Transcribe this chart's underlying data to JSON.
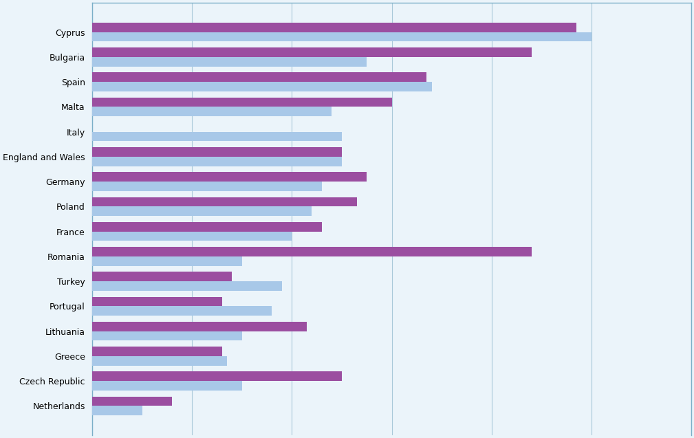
{
  "countries": [
    "Cyprus",
    "Bulgaria",
    "Spain",
    "Malta",
    "Italy",
    "England and Wales",
    "Germany",
    "Poland",
    "France",
    "Romania",
    "Turkey",
    "Portugal",
    "Lithuania",
    "Greece",
    "Czech Republic",
    "Netherlands"
  ],
  "values_blue": [
    100,
    55,
    68,
    48,
    50,
    50,
    46,
    44,
    40,
    30,
    38,
    36,
    30,
    27,
    30,
    10
  ],
  "values_purple": [
    97,
    88,
    67,
    60,
    0,
    50,
    55,
    53,
    46,
    88,
    28,
    26,
    43,
    26,
    50,
    16
  ],
  "color_purple": "#9B4EA0",
  "color_blue": "#A8C8E8",
  "grid_color": "#A8C8D8",
  "border_color": "#7BAFC8",
  "xlim": [
    0,
    120
  ],
  "bar_height": 0.38,
  "figure_bg": "#EBF4FA",
  "axes_bg": "#EBF4FA",
  "xticks": [
    0,
    20,
    40,
    60,
    80,
    100,
    120
  ],
  "fontsize_labels": 9
}
